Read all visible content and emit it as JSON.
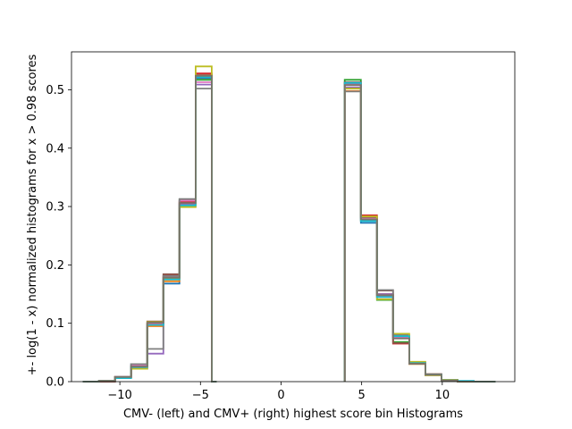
{
  "chart_data": {
    "type": "line",
    "step": true,
    "title": "",
    "xlabel": "CMV- (left) and CMV+ (right) highest score bin Histograms",
    "ylabel": "+- log(1 - x) normalized histograms for x > 0.98 scores",
    "xlim": [
      -13.0,
      14.5
    ],
    "ylim": [
      0.0,
      0.565
    ],
    "grid": false,
    "legend": "none",
    "x_ticks": [
      -10,
      -5,
      0,
      5,
      10
    ],
    "x_tick_labels": [
      "−10",
      "−5",
      "0",
      "5",
      "10"
    ],
    "y_ticks": [
      0.0,
      0.1,
      0.2,
      0.3,
      0.4,
      0.5
    ],
    "y_tick_labels": [
      "0.0",
      "0.1",
      "0.2",
      "0.3",
      "0.4",
      "0.5"
    ],
    "negative_bin_edges": [
      -12.3,
      -11.3,
      -10.3,
      -9.3,
      -8.3,
      -7.3,
      -6.3,
      -5.3,
      -4.3,
      -4.0
    ],
    "positive_bin_edges": [
      3.95,
      4.95,
      5.95,
      6.95,
      7.95,
      8.95,
      9.95,
      10.95,
      11.95,
      12.95,
      13.3
    ],
    "series": [
      {
        "color": "#1f77b4",
        "negative_values": [
          0.0,
          0.001,
          0.008,
          0.03,
          0.098,
          0.168,
          0.305,
          0.52,
          0.0
        ],
        "positive_values": [
          0.51,
          0.272,
          0.148,
          0.075,
          0.033,
          0.012,
          0.003,
          0.001,
          0.0,
          0.0
        ]
      },
      {
        "color": "#ff7f0e",
        "negative_values": [
          0.0,
          0.001,
          0.007,
          0.025,
          0.095,
          0.172,
          0.3,
          0.525,
          0.0
        ],
        "positive_values": [
          0.498,
          0.28,
          0.15,
          0.08,
          0.03,
          0.011,
          0.002,
          0.0,
          0.0,
          0.0
        ]
      },
      {
        "color": "#2ca02c",
        "negative_values": [
          0.0,
          0.001,
          0.007,
          0.027,
          0.1,
          0.18,
          0.312,
          0.517,
          0.0
        ],
        "positive_values": [
          0.517,
          0.276,
          0.14,
          0.068,
          0.031,
          0.012,
          0.002,
          0.0,
          0.0,
          0.0
        ]
      },
      {
        "color": "#d62728",
        "negative_values": [
          0.0,
          0.0,
          0.008,
          0.024,
          0.099,
          0.182,
          0.308,
          0.528,
          0.0
        ],
        "positive_values": [
          0.512,
          0.285,
          0.145,
          0.065,
          0.032,
          0.012,
          0.002,
          0.0,
          0.0,
          0.0
        ]
      },
      {
        "color": "#9467bd",
        "negative_values": [
          0.0,
          0.001,
          0.008,
          0.022,
          0.048,
          0.178,
          0.304,
          0.509,
          0.0
        ],
        "positive_values": [
          0.504,
          0.281,
          0.15,
          0.075,
          0.031,
          0.012,
          0.002,
          0.0,
          0.0,
          0.0
        ]
      },
      {
        "color": "#8c564b",
        "negative_values": [
          0.0,
          0.0,
          0.008,
          0.026,
          0.103,
          0.184,
          0.31,
          0.525,
          0.0
        ],
        "positive_values": [
          0.513,
          0.282,
          0.156,
          0.066,
          0.033,
          0.013,
          0.002,
          0.0,
          0.0,
          0.0
        ]
      },
      {
        "color": "#e377c2",
        "negative_values": [
          0.0,
          0.001,
          0.007,
          0.028,
          0.1,
          0.179,
          0.31,
          0.513,
          0.0
        ],
        "positive_values": [
          0.509,
          0.279,
          0.146,
          0.077,
          0.033,
          0.011,
          0.002,
          0.0,
          0.0,
          0.0
        ]
      },
      {
        "color": "#7f7f7f",
        "negative_values": [
          0.0,
          0.001,
          0.008,
          0.03,
          0.056,
          0.181,
          0.313,
          0.502,
          0.0
        ],
        "positive_values": [
          0.497,
          0.276,
          0.157,
          0.08,
          0.031,
          0.012,
          0.002,
          0.0,
          0.0,
          0.0
        ]
      },
      {
        "color": "#bcbd22",
        "negative_values": [
          0.0,
          0.001,
          0.007,
          0.022,
          0.102,
          0.176,
          0.299,
          0.54,
          0.0
        ],
        "positive_values": [
          0.502,
          0.283,
          0.141,
          0.082,
          0.034,
          0.011,
          0.003,
          0.0,
          0.0,
          0.0
        ]
      },
      {
        "color": "#17becf",
        "negative_values": [
          0.0,
          0.001,
          0.006,
          0.025,
          0.097,
          0.175,
          0.302,
          0.522,
          0.0
        ],
        "positive_values": [
          0.512,
          0.275,
          0.145,
          0.078,
          0.032,
          0.012,
          0.002,
          0.001,
          0.0,
          0.0
        ]
      },
      {
        "color": "#7a7467",
        "negative_values": [
          0.0,
          0.001,
          0.008,
          0.026,
          0.101,
          0.178,
          0.306,
          0.524,
          0.0
        ],
        "positive_values": [
          0.508,
          0.278,
          0.148,
          0.074,
          0.031,
          0.012,
          0.002,
          0.0,
          0.0,
          0.0
        ]
      }
    ]
  }
}
